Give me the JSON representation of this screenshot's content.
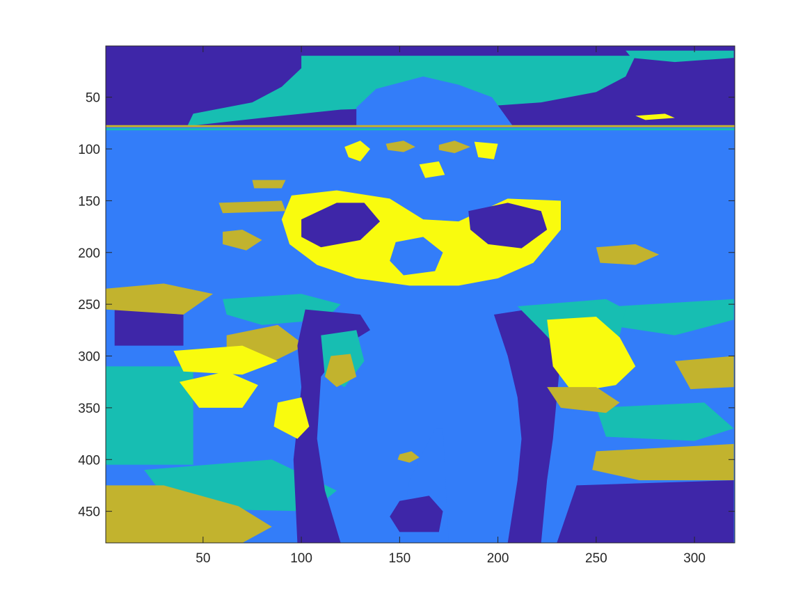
{
  "chart_data": {
    "type": "heatmap",
    "title": "",
    "xlabel": "",
    "ylabel": "",
    "xlim": [
      0.5,
      320.5
    ],
    "ylim": [
      0.5,
      480.5
    ],
    "y_reversed": true,
    "x_ticks": [
      50,
      100,
      150,
      200,
      250,
      300
    ],
    "y_ticks": [
      50,
      100,
      150,
      200,
      250,
      300,
      350,
      400,
      450
    ],
    "grid": false,
    "legend": "none",
    "colormap": {
      "name": "parula (5-level quantized)",
      "levels": [
        {
          "index": 1,
          "color": "#3e26a8"
        },
        {
          "index": 2,
          "color": "#337df9"
        },
        {
          "index": 3,
          "color": "#17beb2"
        },
        {
          "index": 4,
          "color": "#c2b32e"
        },
        {
          "index": 5,
          "color": "#f9fb0e"
        }
      ]
    },
    "content_description": "Segmented image (5 clusters) of a child's head and shoulders rising out of rippling water",
    "background_level": 2,
    "regions": [
      {
        "label": 1,
        "shape": "rect",
        "x": [
          0.5,
          320.5
        ],
        "y": [
          0.5,
          79
        ]
      },
      {
        "label": 3,
        "shape": "poly",
        "points": [
          [
            100,
            10
          ],
          [
            270,
            10
          ],
          [
            265,
            30
          ],
          [
            250,
            45
          ],
          [
            222,
            55
          ],
          [
            185,
            60
          ],
          [
            150,
            60
          ],
          [
            120,
            62
          ],
          [
            80,
            70
          ],
          [
            42,
            78
          ],
          [
            45,
            66
          ],
          [
            75,
            55
          ],
          [
            90,
            40
          ],
          [
            100,
            22
          ]
        ]
      },
      {
        "label": 3,
        "shape": "poly",
        "points": [
          [
            265,
            5
          ],
          [
            320,
            5
          ],
          [
            320,
            12
          ],
          [
            290,
            16
          ],
          [
            268,
            12
          ]
        ]
      },
      {
        "label": 2,
        "shape": "poly",
        "points": [
          [
            128,
            79
          ],
          [
            128,
            60
          ],
          [
            138,
            42
          ],
          [
            162,
            30
          ],
          [
            180,
            38
          ],
          [
            197,
            50
          ],
          [
            208,
            79
          ]
        ]
      },
      {
        "label": 1,
        "shape": "rect",
        "x": [
          5,
          40
        ],
        "y": [
          235,
          290
        ]
      },
      {
        "label": 3,
        "shape": "rect",
        "x": [
          0.5,
          45
        ],
        "y": [
          310,
          405
        ]
      },
      {
        "label": 5,
        "shape": "poly",
        "points": [
          [
            38,
            325
          ],
          [
            62,
            315
          ],
          [
            78,
            328
          ],
          [
            70,
            350
          ],
          [
            48,
            350
          ]
        ]
      },
      {
        "label": 3,
        "shape": "poly",
        "points": [
          [
            20,
            410
          ],
          [
            85,
            400
          ],
          [
            118,
            430
          ],
          [
            105,
            450
          ],
          [
            55,
            448
          ],
          [
            30,
            435
          ]
        ]
      },
      {
        "label": 4,
        "shape": "poly",
        "points": [
          [
            0.5,
            425
          ],
          [
            30,
            425
          ],
          [
            68,
            445
          ],
          [
            85,
            465
          ],
          [
            70,
            480.5
          ],
          [
            0.5,
            480.5
          ]
        ]
      },
      {
        "label": 3,
        "shape": "poly",
        "points": [
          [
            60,
            245
          ],
          [
            100,
            240
          ],
          [
            120,
            250
          ],
          [
            112,
            265
          ],
          [
            80,
            270
          ],
          [
            62,
            260
          ]
        ]
      },
      {
        "label": 4,
        "shape": "poly",
        "points": [
          [
            62,
            280
          ],
          [
            88,
            270
          ],
          [
            102,
            290
          ],
          [
            86,
            305
          ],
          [
            62,
            302
          ]
        ]
      },
      {
        "label": 5,
        "shape": "poly",
        "points": [
          [
            35,
            295
          ],
          [
            70,
            290
          ],
          [
            88,
            305
          ],
          [
            70,
            318
          ],
          [
            40,
            315
          ]
        ]
      },
      {
        "label": 4,
        "shape": "poly",
        "points": [
          [
            0.5,
            235
          ],
          [
            30,
            230
          ],
          [
            55,
            240
          ],
          [
            40,
            260
          ],
          [
            0.5,
            255
          ]
        ]
      },
      {
        "label": 3,
        "shape": "poly",
        "points": [
          [
            260,
            252
          ],
          [
            320,
            245
          ],
          [
            320,
            265
          ],
          [
            290,
            280
          ],
          [
            262,
            272
          ]
        ]
      },
      {
        "label": 4,
        "shape": "poly",
        "points": [
          [
            290,
            305
          ],
          [
            320,
            300
          ],
          [
            320,
            330
          ],
          [
            298,
            332
          ]
        ]
      },
      {
        "label": 3,
        "shape": "poly",
        "points": [
          [
            250,
            350
          ],
          [
            305,
            345
          ],
          [
            320,
            370
          ],
          [
            300,
            382
          ],
          [
            255,
            378
          ]
        ]
      },
      {
        "label": 4,
        "shape": "poly",
        "points": [
          [
            250,
            392
          ],
          [
            320,
            385
          ],
          [
            320,
            420
          ],
          [
            272,
            420
          ],
          [
            248,
            410
          ]
        ]
      },
      {
        "label": 1,
        "shape": "poly",
        "points": [
          [
            240,
            425
          ],
          [
            320,
            420
          ],
          [
            320,
            480.5
          ],
          [
            230,
            480.5
          ]
        ]
      },
      {
        "label": 2,
        "shape": "poly",
        "points": [
          [
            168,
            370
          ],
          [
            172,
            370
          ],
          [
            175,
            480.5
          ],
          [
            150,
            480.5
          ],
          [
            155,
            420
          ]
        ]
      },
      {
        "label": 1,
        "shape": "poly",
        "points": [
          [
            102,
            255
          ],
          [
            130,
            260
          ],
          [
            135,
            275
          ],
          [
            122,
            290
          ],
          [
            110,
            320
          ],
          [
            108,
            380
          ],
          [
            112,
            430
          ],
          [
            120,
            480.5
          ],
          [
            98,
            480.5
          ],
          [
            96,
            400
          ],
          [
            100,
            330
          ],
          [
            98,
            290
          ]
        ]
      },
      {
        "label": 1,
        "shape": "poly",
        "points": [
          [
            198,
            260
          ],
          [
            215,
            255
          ],
          [
            228,
            260
          ],
          [
            232,
            300
          ],
          [
            230,
            340
          ],
          [
            228,
            380
          ],
          [
            225,
            420
          ],
          [
            222,
            480.5
          ],
          [
            205,
            480.5
          ],
          [
            210,
            420
          ],
          [
            212,
            380
          ],
          [
            210,
            340
          ],
          [
            205,
            300
          ]
        ]
      },
      {
        "label": 3,
        "shape": "poly",
        "points": [
          [
            210,
            252
          ],
          [
            255,
            245
          ],
          [
            265,
            255
          ],
          [
            262,
            280
          ],
          [
            248,
            300
          ],
          [
            232,
            295
          ],
          [
            222,
            275
          ]
        ]
      },
      {
        "label": 5,
        "shape": "poly",
        "points": [
          [
            225,
            265
          ],
          [
            250,
            262
          ],
          [
            262,
            282
          ],
          [
            270,
            310
          ],
          [
            260,
            328
          ],
          [
            238,
            335
          ],
          [
            228,
            310
          ]
        ]
      },
      {
        "label": 4,
        "shape": "poly",
        "points": [
          [
            225,
            330
          ],
          [
            250,
            330
          ],
          [
            262,
            345
          ],
          [
            255,
            355
          ],
          [
            232,
            350
          ]
        ]
      },
      {
        "label": 3,
        "shape": "poly",
        "points": [
          [
            110,
            280
          ],
          [
            128,
            275
          ],
          [
            132,
            305
          ],
          [
            122,
            330
          ],
          [
            112,
            320
          ]
        ]
      },
      {
        "label": 4,
        "shape": "poly",
        "points": [
          [
            115,
            300
          ],
          [
            125,
            298
          ],
          [
            128,
            320
          ],
          [
            118,
            330
          ],
          [
            112,
            320
          ]
        ]
      },
      {
        "label": 5,
        "shape": "poly",
        "points": [
          [
            88,
            345
          ],
          [
            100,
            340
          ],
          [
            104,
            368
          ],
          [
            98,
            380
          ],
          [
            86,
            368
          ]
        ]
      },
      {
        "label": 5,
        "shape": "poly",
        "points": [
          [
            95,
            145
          ],
          [
            118,
            140
          ],
          [
            145,
            148
          ],
          [
            162,
            168
          ],
          [
            180,
            170
          ],
          [
            205,
            148
          ],
          [
            232,
            150
          ],
          [
            232,
            178
          ],
          [
            218,
            210
          ],
          [
            200,
            225
          ],
          [
            180,
            232
          ],
          [
            155,
            232
          ],
          [
            128,
            225
          ],
          [
            108,
            212
          ],
          [
            94,
            192
          ],
          [
            90,
            168
          ]
        ]
      },
      {
        "label": 1,
        "shape": "poly",
        "points": [
          [
            100,
            168
          ],
          [
            118,
            152
          ],
          [
            132,
            152
          ],
          [
            140,
            170
          ],
          [
            130,
            188
          ],
          [
            110,
            195
          ],
          [
            100,
            185
          ]
        ]
      },
      {
        "label": 1,
        "shape": "poly",
        "points": [
          [
            185,
            160
          ],
          [
            205,
            152
          ],
          [
            222,
            160
          ],
          [
            225,
            178
          ],
          [
            212,
            196
          ],
          [
            195,
            192
          ],
          [
            186,
            178
          ]
        ]
      },
      {
        "label": 2,
        "shape": "poly",
        "points": [
          [
            148,
            190
          ],
          [
            162,
            185
          ],
          [
            172,
            200
          ],
          [
            168,
            218
          ],
          [
            152,
            222
          ],
          [
            145,
            208
          ]
        ]
      },
      {
        "label": 4,
        "shape": "poly",
        "points": [
          [
            60,
            180
          ],
          [
            70,
            178
          ],
          [
            80,
            188
          ],
          [
            72,
            198
          ],
          [
            60,
            192
          ]
        ]
      },
      {
        "label": 4,
        "shape": "poly",
        "points": [
          [
            250,
            195
          ],
          [
            270,
            192
          ],
          [
            282,
            202
          ],
          [
            270,
            212
          ],
          [
            252,
            210
          ]
        ]
      },
      {
        "label": 4,
        "shape": "poly",
        "points": [
          [
            58,
            152
          ],
          [
            90,
            150
          ],
          [
            92,
            160
          ],
          [
            60,
            162
          ]
        ]
      },
      {
        "label": 4,
        "shape": "poly",
        "points": [
          [
            75,
            130
          ],
          [
            92,
            130
          ],
          [
            90,
            138
          ],
          [
            76,
            138
          ]
        ]
      },
      {
        "label": 4,
        "shape": "poly",
        "points": [
          [
            143,
            95
          ],
          [
            152,
            92
          ],
          [
            158,
            98
          ],
          [
            152,
            103
          ],
          [
            144,
            101
          ]
        ]
      },
      {
        "label": 4,
        "shape": "poly",
        "points": [
          [
            170,
            96
          ],
          [
            178,
            92
          ],
          [
            186,
            98
          ],
          [
            178,
            104
          ],
          [
            170,
            101
          ]
        ]
      },
      {
        "label": 5,
        "shape": "poly",
        "points": [
          [
            122,
            98
          ],
          [
            130,
            92
          ],
          [
            135,
            100
          ],
          [
            130,
            112
          ],
          [
            124,
            108
          ]
        ]
      },
      {
        "label": 5,
        "shape": "poly",
        "points": [
          [
            188,
            93
          ],
          [
            200,
            95
          ],
          [
            198,
            110
          ],
          [
            190,
            108
          ]
        ]
      },
      {
        "label": 5,
        "shape": "poly",
        "points": [
          [
            160,
            115
          ],
          [
            170,
            112
          ],
          [
            173,
            125
          ],
          [
            163,
            128
          ]
        ]
      },
      {
        "label": 1,
        "shape": "poly",
        "points": [
          [
            150,
            440
          ],
          [
            165,
            435
          ],
          [
            172,
            450
          ],
          [
            170,
            470
          ],
          [
            150,
            470
          ],
          [
            145,
            455
          ]
        ]
      },
      {
        "label": 4,
        "shape": "poly",
        "points": [
          [
            150,
            395
          ],
          [
            156,
            392
          ],
          [
            160,
            398
          ],
          [
            155,
            403
          ],
          [
            149,
            400
          ]
        ]
      },
      {
        "label": 3,
        "shape": "poly",
        "points": [
          [
            0.5,
            80
          ],
          [
            320.5,
            80
          ],
          [
            320.5,
            82
          ],
          [
            0.5,
            82
          ]
        ]
      },
      {
        "label": 4,
        "shape": "poly",
        "points": [
          [
            0.5,
            77
          ],
          [
            320.5,
            77
          ],
          [
            320.5,
            79
          ],
          [
            0.5,
            79
          ]
        ]
      },
      {
        "label": 5,
        "shape": "poly",
        "points": [
          [
            270,
            68
          ],
          [
            285,
            66
          ],
          [
            290,
            70
          ],
          [
            275,
            72
          ]
        ]
      }
    ]
  }
}
